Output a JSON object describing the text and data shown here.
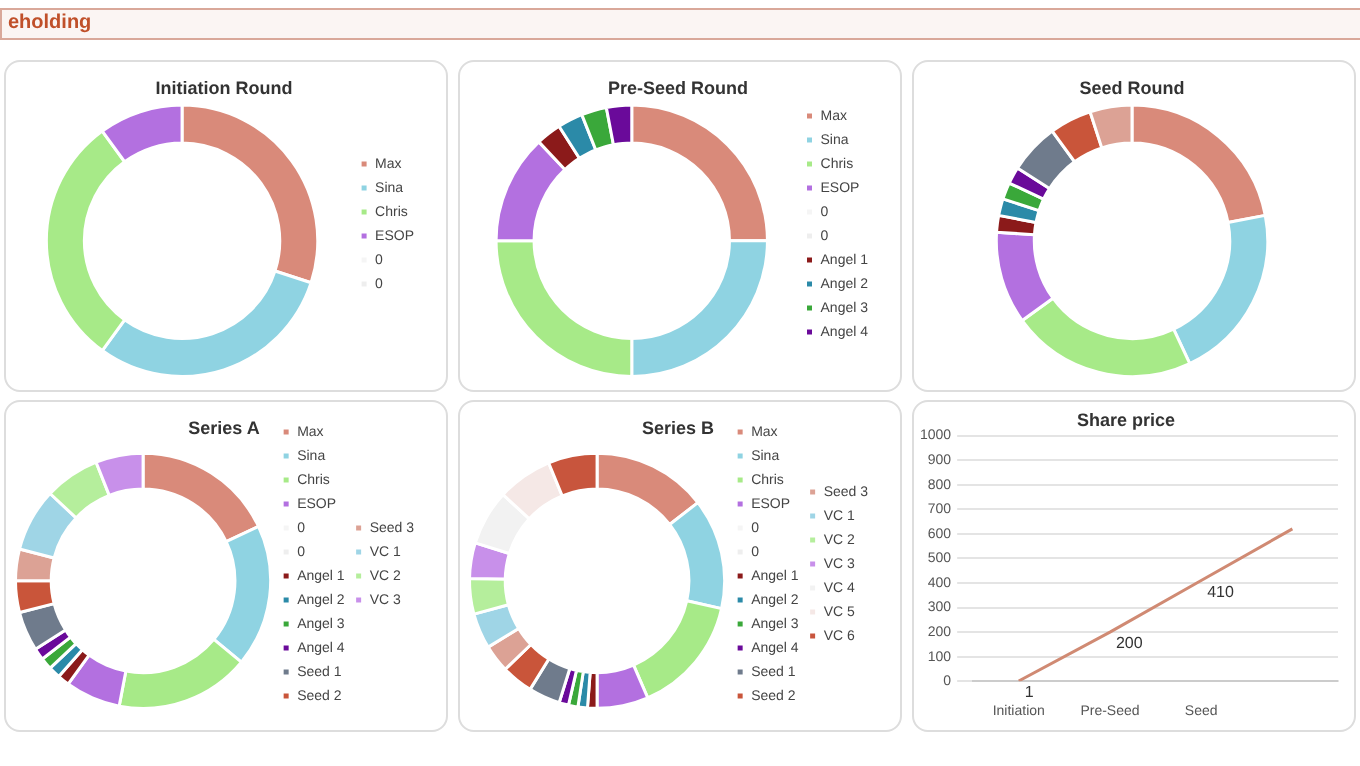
{
  "chart_data": [
    {
      "type": "donut",
      "title": "Initiation Round",
      "annotations": [
        "eholding"
      ],
      "legend": "right",
      "categories": [
        "Max",
        "Sina",
        "Chris",
        "ESOP",
        "0",
        "0"
      ],
      "values": [
        30,
        30,
        30,
        10,
        0,
        0
      ],
      "colors": [
        "#d98a7a",
        "#8fd3e2",
        "#a7ea88",
        "#b370e0",
        "#f5f5f5",
        "#eeeeee"
      ]
    },
    {
      "type": "donut",
      "title": "Pre-Seed Round",
      "legend": "right",
      "categories": [
        "Max",
        "Sina",
        "Chris",
        "ESOP",
        "0",
        "0",
        "Angel 1",
        "Angel 2",
        "Angel 3",
        "Angel 4"
      ],
      "values": [
        25,
        25,
        25,
        13,
        0,
        0,
        3,
        3,
        3,
        3
      ],
      "colors": [
        "#d98a7a",
        "#8fd3e2",
        "#a7ea88",
        "#b370e0",
        "#f5f5f5",
        "#eeeeee",
        "#8b1a1a",
        "#2b8aa8",
        "#3aa83a",
        "#6a0a9a"
      ]
    },
    {
      "type": "donut",
      "title": "Seed Round",
      "categories": [
        null,
        null,
        null,
        null,
        null,
        null,
        null,
        null,
        null,
        null,
        null
      ],
      "values": [
        22,
        21,
        22,
        11,
        2,
        2,
        2,
        2,
        6,
        5,
        5
      ],
      "colors": [
        "#d98a7a",
        "#8fd3e2",
        "#a7ea88",
        "#b370e0",
        "#8b1a1a",
        "#2b8aa8",
        "#3aa83a",
        "#6a0a9a",
        "#6f7b8c",
        "#c9553a",
        "#dca295"
      ]
    },
    {
      "type": "donut",
      "title": "Series A",
      "legend": "right",
      "categories": [
        "Max",
        "Sina",
        "Chris",
        "ESOP",
        "0",
        "0",
        "Angel 1",
        "Angel 2",
        "Angel 3",
        "Angel 4",
        "Seed 1",
        "Seed 2",
        "Seed 3",
        "VC 1",
        "VC 2",
        "VC 3"
      ],
      "values": [
        18,
        18,
        17,
        7,
        0,
        0,
        1.5,
        1.5,
        1.5,
        1.5,
        5,
        4,
        4,
        8,
        7,
        6
      ],
      "colors": [
        "#d98a7a",
        "#8fd3e2",
        "#a7ea88",
        "#b370e0",
        "#f5f5f5",
        "#eeeeee",
        "#8b1a1a",
        "#2b8aa8",
        "#3aa83a",
        "#6a0a9a",
        "#6f7b8c",
        "#c9553a",
        "#dca295",
        "#9fd5e6",
        "#b5ee9c",
        "#c890ea"
      ]
    },
    {
      "type": "donut",
      "title": "Series B",
      "legend": "right",
      "categories": [
        "Max",
        "Sina",
        "Chris",
        "ESOP",
        "0",
        "0",
        "Angel 1",
        "Angel 2",
        "Angel 3",
        "Angel 4",
        "Seed 1",
        "Seed 2",
        "Seed 3",
        "VC 1",
        "VC 2",
        "VC 3",
        "VC 4",
        "VC 5",
        "VC 6"
      ],
      "values": [
        14.5,
        14,
        15,
        6.5,
        0,
        0,
        1.2,
        1.2,
        1.2,
        1.2,
        4,
        4,
        3.5,
        4.5,
        4.5,
        4.5,
        7,
        7,
        6.2
      ],
      "colors": [
        "#d98a7a",
        "#8fd3e2",
        "#a7ea88",
        "#b370e0",
        "#f5f5f5",
        "#eeeeee",
        "#8b1a1a",
        "#2b8aa8",
        "#3aa83a",
        "#6a0a9a",
        "#6f7b8c",
        "#c9553a",
        "#dca295",
        "#9fd5e6",
        "#b5ee9c",
        "#c890ea",
        "#f2f2f2",
        "#f5e8e6",
        "#c8553d"
      ]
    },
    {
      "type": "line",
      "title": "Share price",
      "categories": [
        "Initiation",
        "Pre-Seed",
        "Seed",
        null
      ],
      "grid": "y",
      "marker": "none",
      "ylim": [
        0,
        1000
      ],
      "yticks": [
        0,
        100,
        200,
        300,
        400,
        500,
        600,
        700,
        800,
        900,
        1000
      ],
      "series": [
        {
          "color": "#d08a73",
          "values": [
            1,
            200,
            410,
            620
          ],
          "value_labels": [
            "1",
            "200",
            "410",
            null
          ]
        }
      ]
    }
  ]
}
